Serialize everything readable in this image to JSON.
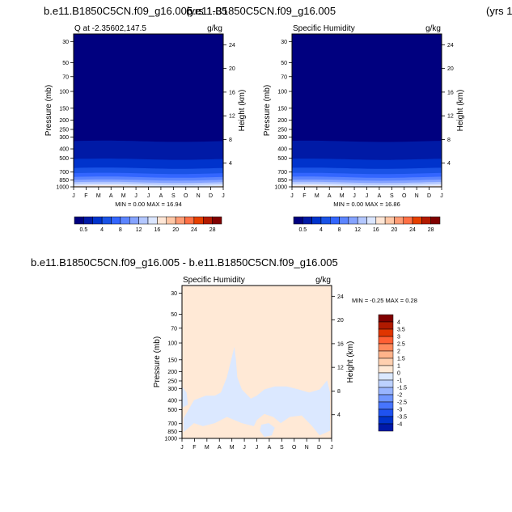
{
  "titles": {
    "case_left": "b.e11.B1850C5CN.f09_g16.005",
    "years_left": "(yrs 1-35",
    "case_mid": "b.e11.B1850C5CN.f09_g16.005",
    "years_right": "(yrs 1",
    "diff_title": "b.e11.B1850C5CN.f09_g16.005 - b.e11.B1850C5CN.f09_g16.005"
  },
  "colors": {
    "qcolors": [
      "#00007f",
      "#001aa6",
      "#0033cc",
      "#1a53e6",
      "#3366ff",
      "#5c85ff",
      "#85a3ff",
      "#b3c7ff",
      "#dbe6ff",
      "#ffe6d5",
      "#ffc7a6",
      "#ff9c75",
      "#ff7045",
      "#e64000",
      "#b31a00",
      "#800000"
    ],
    "diffcolors": [
      "#00007f",
      "#0019a8",
      "#0033cc",
      "#1f52f0",
      "#4775ff",
      "#7096ff",
      "#99b5ff",
      "#bcd1ff",
      "#dbe8ff",
      "#ffe9d6",
      "#ffd0b0",
      "#ffb38a",
      "#ff8a5c",
      "#ff5f33",
      "#e03500",
      "#b01a00",
      "#800000"
    ]
  },
  "chart_data": [
    {
      "type": "contour",
      "panel": "left",
      "title": "Q at -2.35602,147.5",
      "units": "g/kg",
      "xlabel": "",
      "ylabel": "Pressure (mb)",
      "y2label": "Height (km)",
      "months": [
        "J",
        "F",
        "M",
        "A",
        "M",
        "J",
        "J",
        "A",
        "S",
        "O",
        "N",
        "D",
        "J"
      ],
      "pressure_ticks": [
        30,
        50,
        70,
        100,
        150,
        200,
        250,
        300,
        400,
        500,
        700,
        850,
        1000
      ],
      "height_ticks": [
        4,
        8,
        12,
        16,
        20,
        24
      ],
      "min_max": "MIN =   0.00 MAX =  16.94",
      "colorbar_labels": [
        "0.5",
        "4",
        "8",
        "12",
        "16",
        "20",
        "24",
        "28"
      ],
      "colorbar_levels": [
        0.5,
        2,
        4,
        6,
        8,
        10,
        12,
        14,
        16,
        18,
        20,
        22,
        24,
        26,
        28
      ],
      "min": 0.0,
      "max": 16.94
    },
    {
      "type": "contour",
      "panel": "right",
      "title": "Specific Humidity",
      "units": "g/kg",
      "xlabel": "",
      "ylabel": "Pressure (mb)",
      "y2label": "Height (km)",
      "months": [
        "J",
        "F",
        "M",
        "A",
        "M",
        "J",
        "J",
        "A",
        "S",
        "O",
        "N",
        "D",
        "J"
      ],
      "pressure_ticks": [
        30,
        50,
        70,
        100,
        150,
        200,
        250,
        300,
        400,
        500,
        700,
        850,
        1000
      ],
      "height_ticks": [
        4,
        8,
        12,
        16,
        20,
        24
      ],
      "min_max": "MIN =   0.00 MAX =  16.86",
      "colorbar_labels": [
        "0.5",
        "4",
        "8",
        "12",
        "16",
        "20",
        "24",
        "28"
      ],
      "colorbar_levels": [
        0.5,
        2,
        4,
        6,
        8,
        10,
        12,
        14,
        16,
        18,
        20,
        22,
        24,
        26,
        28
      ],
      "min": 0.0,
      "max": 16.86
    },
    {
      "type": "contour",
      "panel": "difference",
      "title": "Specific Humidity",
      "units": "g/kg",
      "xlabel": "",
      "ylabel": "Pressure (mb)",
      "y2label": "Height (km)",
      "months": [
        "J",
        "F",
        "M",
        "A",
        "M",
        "J",
        "J",
        "A",
        "S",
        "O",
        "N",
        "D",
        "J"
      ],
      "pressure_ticks": [
        30,
        50,
        70,
        100,
        150,
        200,
        250,
        300,
        400,
        500,
        700,
        850,
        1000
      ],
      "height_ticks": [
        4,
        8,
        12,
        16,
        20,
        24
      ],
      "min_max": "MIN =  -0.25 MAX =   0.28",
      "colorbar_labels": [
        "4",
        "3.5",
        "3",
        "2.5",
        "2",
        "1.5",
        "1",
        "0",
        "-1",
        "-1.5",
        "-2",
        "-2.5",
        "-3",
        "-3.5",
        "-4"
      ],
      "min": -0.25,
      "max": 0.28
    }
  ]
}
